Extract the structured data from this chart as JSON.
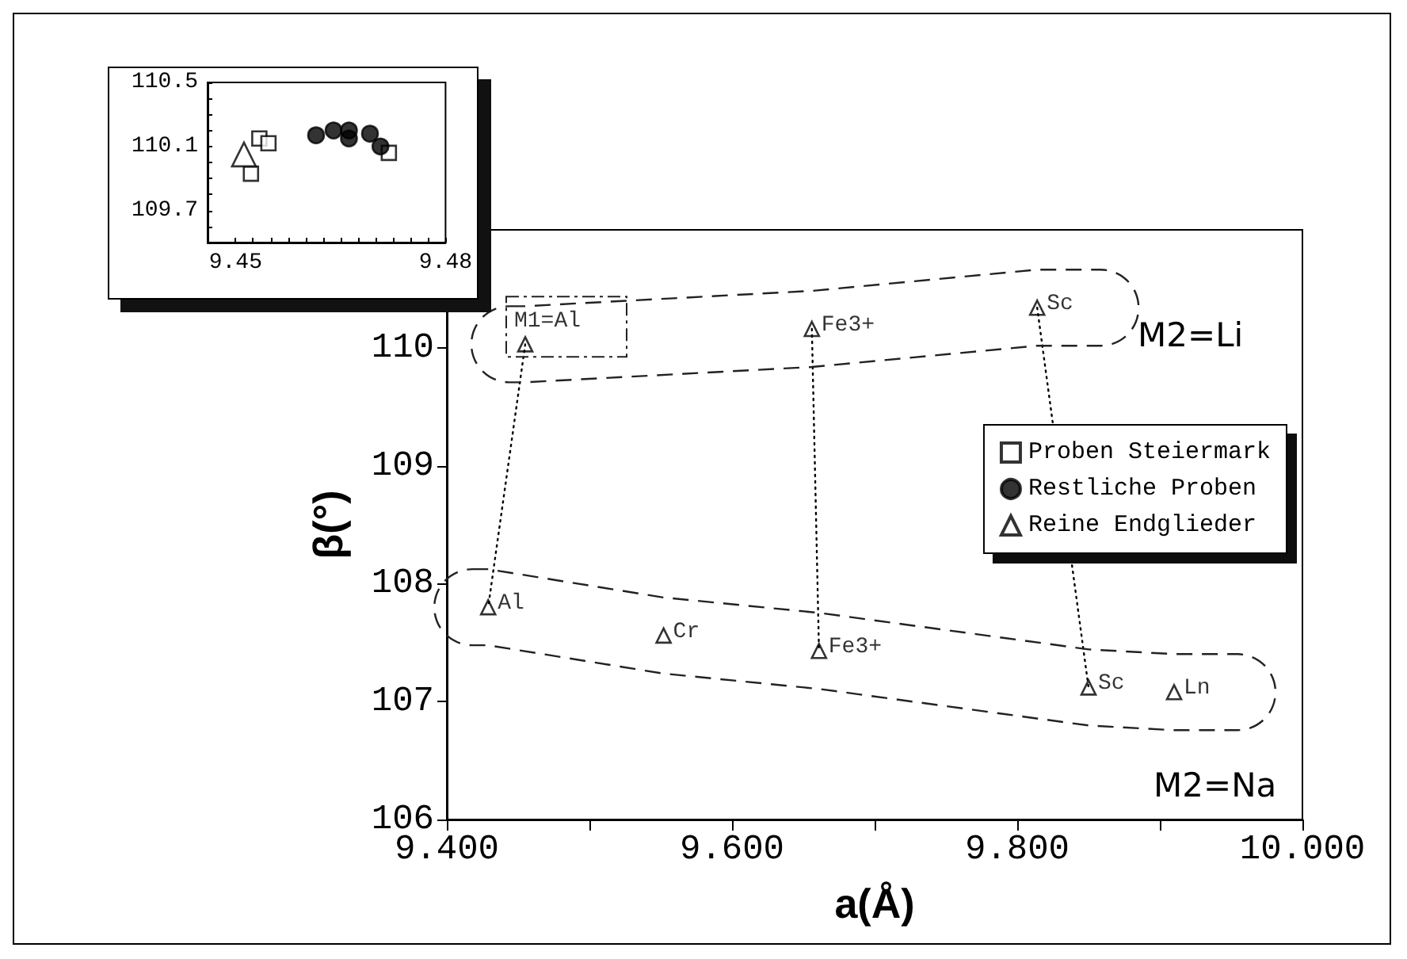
{
  "chart_data": [
    {
      "type": "scatter",
      "xlabel": "a(Å)",
      "ylabel": "β(°)",
      "xlim": [
        9.4,
        10.0
      ],
      "ylim": [
        106,
        111
      ],
      "xticks": [
        {
          "value": 9.4,
          "label": "9.400"
        },
        {
          "value": 9.5,
          "label": null
        },
        {
          "value": 9.6,
          "label": "9.600"
        },
        {
          "value": 9.7,
          "label": null
        },
        {
          "value": 9.8,
          "label": "9.800"
        },
        {
          "value": 9.9,
          "label": null
        },
        {
          "value": 10.0,
          "label": "10.000"
        }
      ],
      "yticks": [
        106,
        107,
        108,
        109,
        110
      ],
      "legend": "right",
      "grid": false,
      "series": [
        {
          "name": "Proben Steiermark",
          "color": "#000000",
          "marker": "square"
        },
        {
          "name": "Restliche Proben",
          "color": "#000000",
          "marker": "circle"
        },
        {
          "name": "Reine Endglieder",
          "color": "#000000",
          "marker": "triangle",
          "x": [
            9.455,
            9.656,
            9.814,
            9.429,
            9.552,
            9.661,
            9.85,
            9.91
          ],
          "values": [
            110.03,
            110.16,
            110.34,
            107.8,
            107.56,
            107.43,
            107.12,
            107.08
          ]
        },
        {
          "type": "line",
          "color": "#000000",
          "line_style": "dotted",
          "marker": "none",
          "x": [
            9.455,
            9.429
          ],
          "values": [
            110.03,
            107.8
          ]
        },
        {
          "type": "line",
          "color": "#000000",
          "line_style": "dotted",
          "marker": "none",
          "x": [
            9.656,
            9.661
          ],
          "values": [
            110.16,
            107.43
          ]
        },
        {
          "type": "line",
          "color": "#000000",
          "line_style": "dotted",
          "marker": "none",
          "x": [
            9.814,
            9.85
          ],
          "values": [
            110.34,
            107.12
          ]
        }
      ],
      "annotations": [
        {
          "text": "M1=Al",
          "x": 9.455,
          "y": 110.03
        },
        {
          "text": "Fe3+",
          "x": 9.656,
          "y": 110.16
        },
        {
          "text": "Sc",
          "x": 9.814,
          "y": 110.34
        },
        {
          "text": "Al",
          "x": 9.429,
          "y": 107.8
        },
        {
          "text": "Cr",
          "x": 9.552,
          "y": 107.56
        },
        {
          "text": "Fe3+",
          "x": 9.661,
          "y": 107.43
        },
        {
          "text": "Sc",
          "x": 9.85,
          "y": 107.12
        },
        {
          "text": "Ln",
          "x": 9.91,
          "y": 107.08
        },
        "M2=Li",
        "M2=Na"
      ]
    },
    {
      "type": "scatter",
      "xlim": [
        9.446,
        9.48
      ],
      "ylim": [
        109.5,
        110.5
      ],
      "xticks": [
        9.45,
        {
          "value": 9.4525,
          "label": null
        },
        {
          "value": 9.455,
          "label": null
        },
        {
          "value": 9.4575,
          "label": null
        },
        {
          "value": 9.46,
          "label": null
        },
        {
          "value": 9.4625,
          "label": null
        },
        {
          "value": 9.465,
          "label": null
        },
        {
          "value": 9.4675,
          "label": null
        },
        {
          "value": 9.47,
          "label": null
        },
        {
          "value": 9.4725,
          "label": null
        },
        {
          "value": 9.475,
          "label": null
        },
        {
          "value": 9.4775,
          "label": null
        },
        9.48
      ],
      "yticks": [
        {
          "value": 109.6,
          "label": null
        },
        109.7,
        {
          "value": 109.8,
          "label": null
        },
        {
          "value": 109.9,
          "label": null
        },
        {
          "value": 110.0,
          "label": null
        },
        110.1,
        {
          "value": 110.2,
          "label": null
        },
        {
          "value": 110.3,
          "label": null
        },
        {
          "value": 110.4,
          "label": null
        },
        110.5
      ],
      "grid": false,
      "series": [
        {
          "color": "#000000",
          "marker": "square",
          "x": [
            9.4534,
            9.4547,
            9.4522,
            9.4719
          ],
          "values": [
            110.15,
            110.12,
            109.93,
            110.06
          ]
        },
        {
          "color": "#000000",
          "marker": "circle",
          "x": [
            9.4615,
            9.464,
            9.4662,
            9.4662,
            9.4692,
            9.4707
          ],
          "values": [
            110.17,
            110.2,
            110.2,
            110.15,
            110.18,
            110.1
          ]
        },
        {
          "color": "#000000",
          "marker": "triangle",
          "x": [
            9.4512
          ],
          "values": [
            110.05
          ]
        }
      ]
    }
  ]
}
